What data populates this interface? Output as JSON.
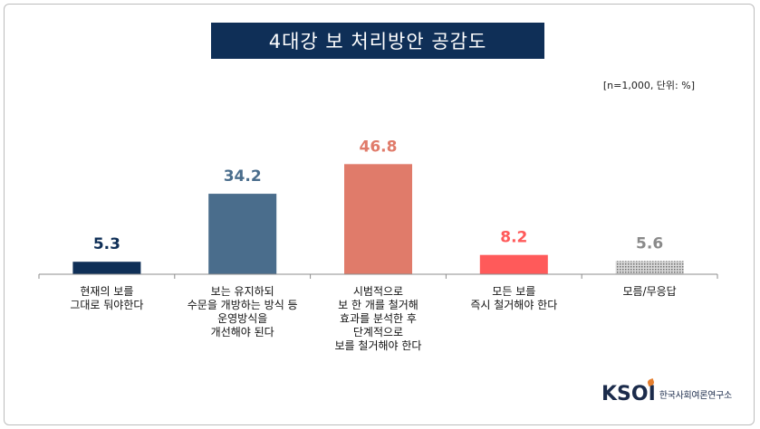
{
  "chart_data": {
    "type": "bar",
    "title": "4대강 보 처리방안 공감도",
    "unit_note": "[n=1,000,  단위: %]",
    "categories": [
      "현재의 보를\n그대로 둬야한다",
      "보는 유지하되\n수문을 개방하는 방식 등\n운영방식을\n개선해야 된다",
      "시범적으로\n보 한 개를 철거해\n효과를 분석한 후\n단계적으로\n보를 철거해야 한다",
      "모든 보를\n즉시 철거해야 한다",
      "모름/무응답"
    ],
    "values": [
      5.3,
      34.2,
      46.8,
      8.2,
      5.6
    ],
    "value_labels": [
      "5.3",
      "34.2",
      "46.8",
      "8.2",
      "5.6"
    ],
    "bar_colors": [
      "#0f2f57",
      "#4a6d8c",
      "#e07b6a",
      "#ff5a5a",
      "#8a8a8a"
    ],
    "label_colors": [
      "#0f2f57",
      "#4a6d8c",
      "#e07b6a",
      "#ff5a5a",
      "#8a8a8a"
    ],
    "ylim": [
      0,
      50
    ],
    "grid": false,
    "legend": "none"
  },
  "logo": {
    "mark": "KSOI",
    "text": "한국사회여론연구소"
  }
}
